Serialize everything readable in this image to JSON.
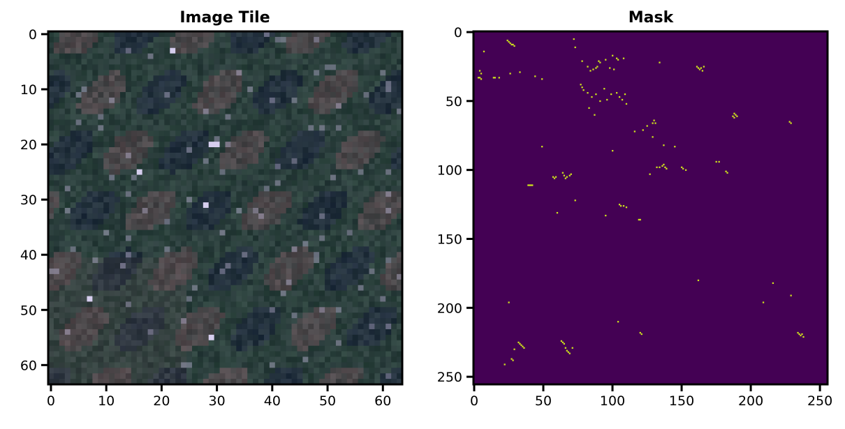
{
  "chart_data": [
    {
      "type": "heatmap",
      "title": "Image Tile",
      "xlabel": "",
      "ylabel": "",
      "xlim": [
        -0.5,
        63.5
      ],
      "ylim": [
        63.5,
        -0.5
      ],
      "xticks": [
        0,
        10,
        20,
        30,
        40,
        50,
        60
      ],
      "yticks": [
        0,
        10,
        20,
        30,
        40,
        50,
        60
      ],
      "grid": false,
      "legend": "none",
      "image_size": [
        64,
        64
      ],
      "colors": {
        "base": "#2a3c3c",
        "dark": "#1f2b3e",
        "green": "#2e4a3e",
        "brown": "#5f4e52",
        "bright": "#b8b0d0"
      },
      "bright_pixels": [
        [
          30,
          20
        ],
        [
          29,
          20
        ],
        [
          16,
          25
        ],
        [
          7,
          48
        ],
        [
          28,
          31
        ],
        [
          22,
          3
        ],
        [
          29,
          55
        ]
      ]
    },
    {
      "type": "heatmap",
      "title": "Mask",
      "xlabel": "",
      "ylabel": "",
      "xlim": [
        -0.5,
        255.5
      ],
      "ylim": [
        255.5,
        -0.5
      ],
      "xticks": [
        0,
        50,
        100,
        150,
        200,
        250
      ],
      "yticks": [
        0,
        50,
        100,
        150,
        200,
        250
      ],
      "grid": false,
      "legend": "none",
      "image_size": [
        256,
        256
      ],
      "colors": {
        "background": "#440154",
        "positive": "#cde11d"
      },
      "positive_pixels": [
        [
          24,
          6
        ],
        [
          25,
          7
        ],
        [
          26,
          8
        ],
        [
          27,
          9
        ],
        [
          28,
          9
        ],
        [
          29,
          10
        ],
        [
          72,
          5
        ],
        [
          73,
          11
        ],
        [
          7,
          14
        ],
        [
          4,
          28
        ],
        [
          5,
          30
        ],
        [
          3,
          33
        ],
        [
          4,
          33
        ],
        [
          5,
          34
        ],
        [
          14,
          33
        ],
        [
          15,
          33
        ],
        [
          18,
          33
        ],
        [
          26,
          30
        ],
        [
          33,
          29
        ],
        [
          44,
          32
        ],
        [
          49,
          34
        ],
        [
          78,
          21
        ],
        [
          82,
          25
        ],
        [
          84,
          28
        ],
        [
          86,
          27
        ],
        [
          88,
          26
        ],
        [
          89,
          25
        ],
        [
          90,
          21
        ],
        [
          91,
          22
        ],
        [
          95,
          20
        ],
        [
          98,
          26
        ],
        [
          100,
          17
        ],
        [
          101,
          27
        ],
        [
          103,
          19
        ],
        [
          104,
          20
        ],
        [
          108,
          19
        ],
        [
          77,
          38
        ],
        [
          78,
          40
        ],
        [
          79,
          42
        ],
        [
          82,
          44
        ],
        [
          85,
          47
        ],
        [
          88,
          45
        ],
        [
          91,
          50
        ],
        [
          94,
          41
        ],
        [
          96,
          49
        ],
        [
          99,
          45
        ],
        [
          103,
          44
        ],
        [
          105,
          47
        ],
        [
          107,
          49
        ],
        [
          109,
          45
        ],
        [
          110,
          52
        ],
        [
          83,
          55
        ],
        [
          87,
          60
        ],
        [
          134,
          22
        ],
        [
          161,
          25
        ],
        [
          162,
          26
        ],
        [
          163,
          27
        ],
        [
          164,
          26
        ],
        [
          165,
          28
        ],
        [
          166,
          25
        ],
        [
          188,
          59
        ],
        [
          189,
          60
        ],
        [
          190,
          61
        ],
        [
          188,
          62
        ],
        [
          187,
          61
        ],
        [
          129,
          66
        ],
        [
          130,
          64
        ],
        [
          131,
          66
        ],
        [
          125,
          68
        ],
        [
          116,
          72
        ],
        [
          122,
          71
        ],
        [
          228,
          65
        ],
        [
          229,
          66
        ],
        [
          49,
          83
        ],
        [
          100,
          86
        ],
        [
          129,
          76
        ],
        [
          137,
          82
        ],
        [
          145,
          83
        ],
        [
          132,
          98
        ],
        [
          134,
          98
        ],
        [
          136,
          97
        ],
        [
          137,
          96
        ],
        [
          138,
          98
        ],
        [
          139,
          99
        ],
        [
          150,
          98
        ],
        [
          151,
          99
        ],
        [
          153,
          100
        ],
        [
          127,
          103
        ],
        [
          175,
          94
        ],
        [
          177,
          94
        ],
        [
          182,
          101
        ],
        [
          183,
          102
        ],
        [
          64,
          102
        ],
        [
          65,
          104
        ],
        [
          66,
          106
        ],
        [
          67,
          105
        ],
        [
          69,
          104
        ],
        [
          70,
          103
        ],
        [
          57,
          105
        ],
        [
          58,
          106
        ],
        [
          59,
          105
        ],
        [
          39,
          111
        ],
        [
          40,
          111
        ],
        [
          41,
          111
        ],
        [
          42,
          111
        ],
        [
          73,
          122
        ],
        [
          60,
          131
        ],
        [
          105,
          125
        ],
        [
          106,
          126
        ],
        [
          108,
          126
        ],
        [
          110,
          127
        ],
        [
          95,
          133
        ],
        [
          119,
          136
        ],
        [
          120,
          136
        ],
        [
          162,
          180
        ],
        [
          216,
          182
        ],
        [
          25,
          196
        ],
        [
          209,
          196
        ],
        [
          229,
          191
        ],
        [
          104,
          210
        ],
        [
          120,
          218
        ],
        [
          121,
          219
        ],
        [
          234,
          218
        ],
        [
          235,
          219
        ],
        [
          236,
          220
        ],
        [
          237,
          219
        ],
        [
          238,
          221
        ],
        [
          32,
          225
        ],
        [
          33,
          226
        ],
        [
          34,
          227
        ],
        [
          35,
          228
        ],
        [
          36,
          229
        ],
        [
          29,
          230
        ],
        [
          63,
          224
        ],
        [
          64,
          225
        ],
        [
          65,
          226
        ],
        [
          66,
          229
        ],
        [
          67,
          231
        ],
        [
          68,
          232
        ],
        [
          69,
          233
        ],
        [
          71,
          229
        ],
        [
          27,
          237
        ],
        [
          28,
          238
        ],
        [
          22,
          241
        ]
      ]
    }
  ]
}
